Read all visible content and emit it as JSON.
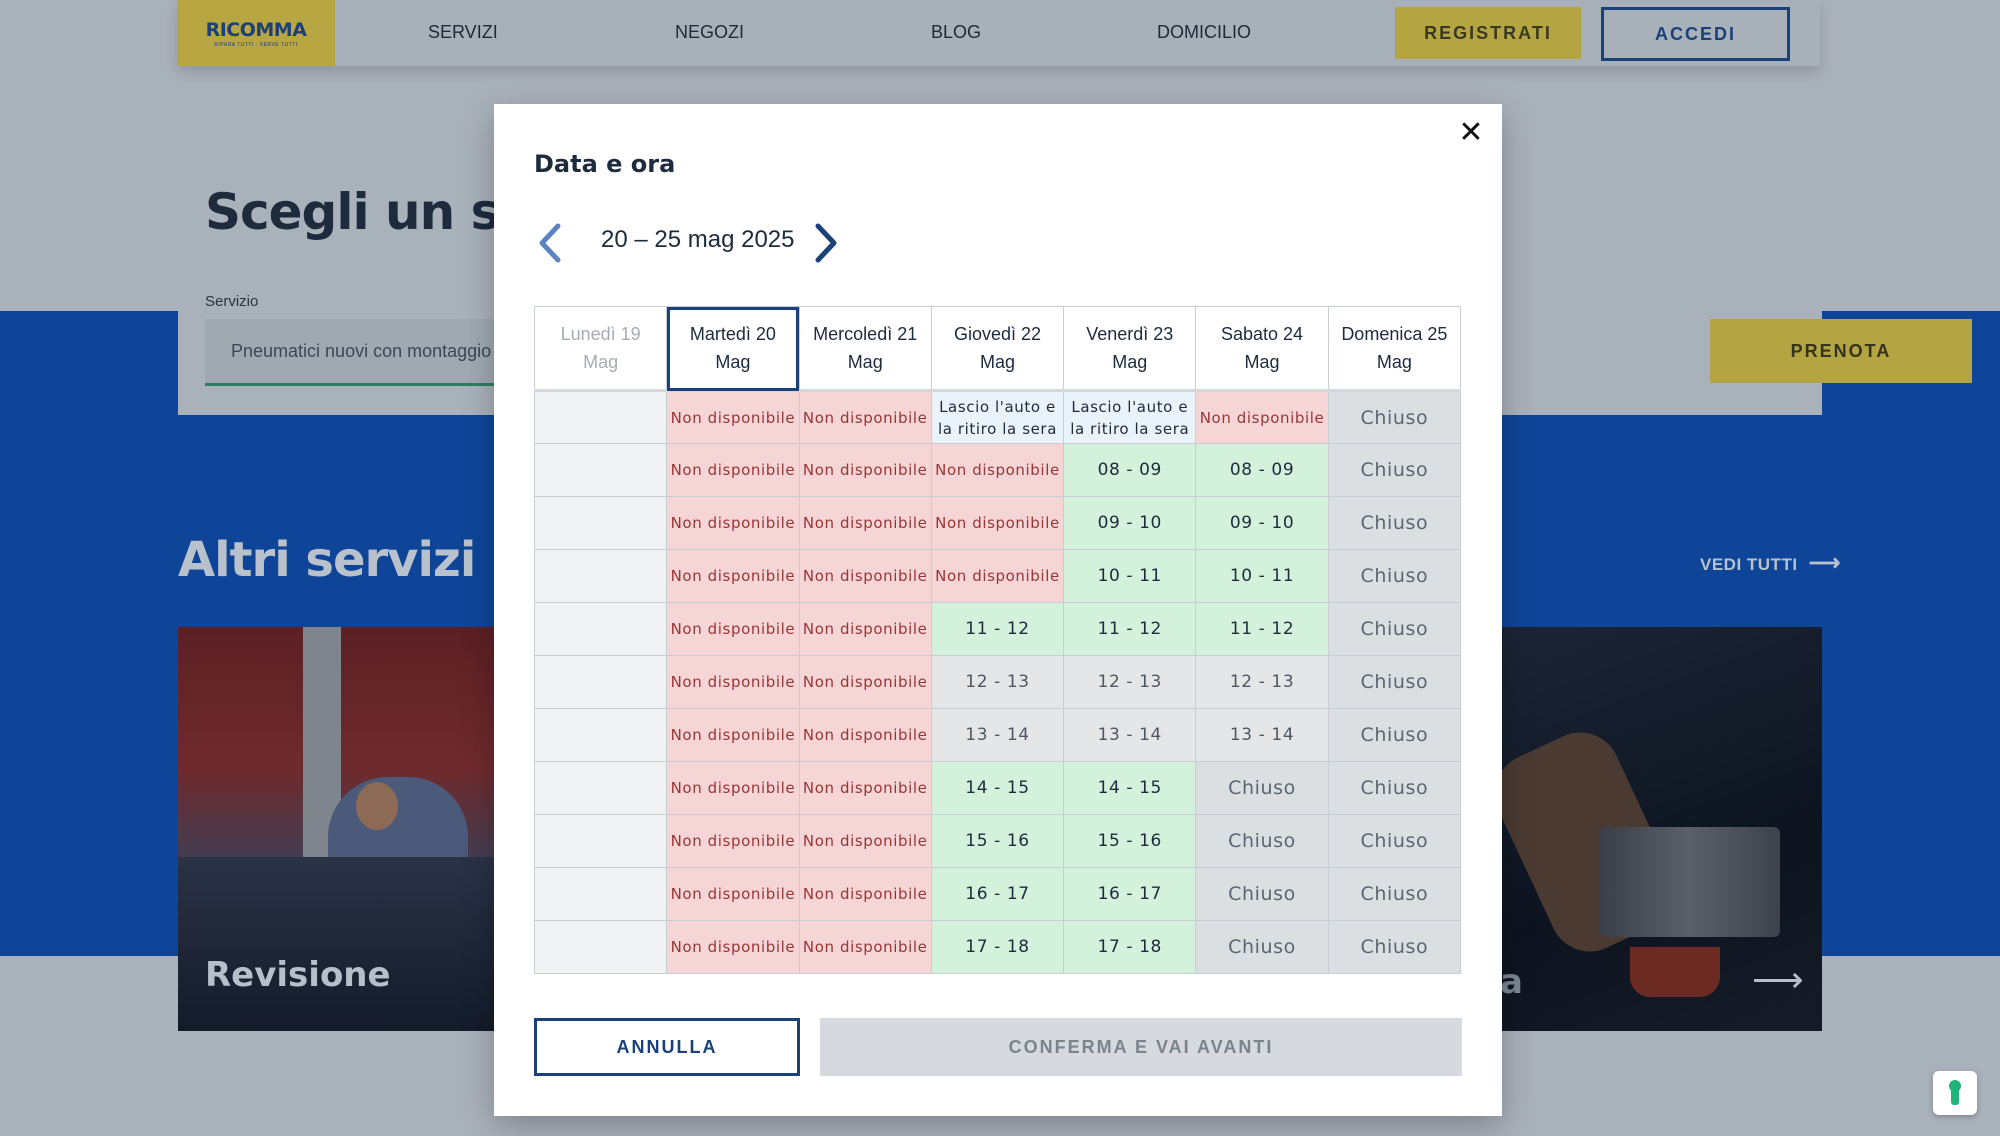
{
  "header": {
    "logo_text": "RICOMMA",
    "logo_sub": "RIPARA TUTTI · SERVE TUTTI",
    "nav": [
      "SERVIZI",
      "NEGOZI",
      "BLOG",
      "DOMICILIO"
    ],
    "register_label": "REGISTRATI",
    "login_label": "ACCEDI"
  },
  "search": {
    "title": "Scegli un ser",
    "service_label": "Servizio",
    "service_value": "Pneumatici nuovi con montaggio",
    "book_label": "PRENOTA"
  },
  "other_services": {
    "title": "Altri servizi",
    "see_all": "VEDI TUTTI",
    "card_left_label": "Revisione",
    "card_right_letter": "a"
  },
  "modal": {
    "title": "Data e ora",
    "range": "20 – 25 mag 2025",
    "days": [
      {
        "line1": "Lunedì 19",
        "line2": "Mag"
      },
      {
        "line1": "Martedì 20",
        "line2": "Mag"
      },
      {
        "line1": "Mercoledì 21",
        "line2": "Mag"
      },
      {
        "line1": "Giovedì 22",
        "line2": "Mag"
      },
      {
        "line1": "Venerdì 23",
        "line2": "Mag"
      },
      {
        "line1": "Sabato 24",
        "line2": "Mag"
      },
      {
        "line1": "Domenica 25",
        "line2": "Mag"
      }
    ],
    "rows": [
      [
        "",
        "Non disponibile",
        "Non disponibile",
        "Lascio l'auto e la ritiro la sera",
        "Lascio l'auto e la ritiro la sera",
        "Non disponibile",
        "Chiuso"
      ],
      [
        "",
        "Non disponibile",
        "Non disponibile",
        "Non disponibile",
        "08 - 09",
        "08 - 09",
        "Chiuso"
      ],
      [
        "",
        "Non disponibile",
        "Non disponibile",
        "Non disponibile",
        "09 - 10",
        "09 - 10",
        "Chiuso"
      ],
      [
        "",
        "Non disponibile",
        "Non disponibile",
        "Non disponibile",
        "10 - 11",
        "10 - 11",
        "Chiuso"
      ],
      [
        "",
        "Non disponibile",
        "Non disponibile",
        "11 - 12",
        "11 - 12",
        "11 - 12",
        "Chiuso"
      ],
      [
        "",
        "Non disponibile",
        "Non disponibile",
        "12 - 13",
        "12 - 13",
        "12 - 13",
        "Chiuso"
      ],
      [
        "",
        "Non disponibile",
        "Non disponibile",
        "13 - 14",
        "13 - 14",
        "13 - 14",
        "Chiuso"
      ],
      [
        "",
        "Non disponibile",
        "Non disponibile",
        "14 - 15",
        "14 - 15",
        "Chiuso",
        "Chiuso"
      ],
      [
        "",
        "Non disponibile",
        "Non disponibile",
        "15 - 16",
        "15 - 16",
        "Chiuso",
        "Chiuso"
      ],
      [
        "",
        "Non disponibile",
        "Non disponibile",
        "16 - 17",
        "16 - 17",
        "Chiuso",
        "Chiuso"
      ],
      [
        "",
        "Non disponibile",
        "Non disponibile",
        "17 - 18",
        "17 - 18",
        "Chiuso",
        "Chiuso"
      ]
    ],
    "gray_slots": [
      "12 - 13",
      "13 - 14"
    ],
    "cancel_label": "ANNULLA",
    "confirm_label": "CONFERMA E VAI AVANTI"
  }
}
